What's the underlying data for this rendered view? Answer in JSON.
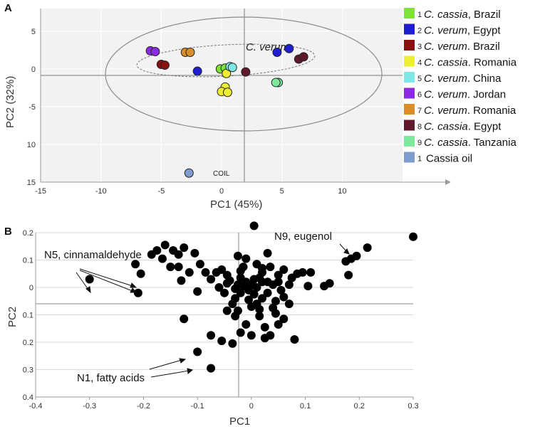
{
  "colors": {
    "plot_bg": "#f2f2f2",
    "grid": "#ffffff",
    "axis": "#7a7a7a",
    "ellipse": "#8c8c8c",
    "point_b": "#000000",
    "c1": "#7fe23a",
    "c2": "#1f1fd0",
    "c3": "#8a1010",
    "c4": "#eeee33",
    "c5": "#7ee7e7",
    "c6": "#8a2be2",
    "c7": "#d98e2a",
    "c8": "#5e1a2a",
    "c9": "#7ee89a",
    "c10": "#7f9ccf"
  },
  "chart_data": [
    {
      "panel": "A",
      "type": "scatter",
      "xlabel": "PC1 (45%)",
      "ylabel": "PC2 (32%)",
      "xlim": [
        -15,
        15
      ],
      "ylim": [
        -15,
        8
      ],
      "xticks": [
        -15,
        -10,
        -5,
        0,
        5,
        10
      ],
      "yticks": [
        5,
        0,
        -5,
        -10,
        -15
      ],
      "ytick_labels": [
        "5",
        "0",
        "-5",
        "10",
        "15"
      ],
      "annotation": "C. verum",
      "coil_label": "COIL",
      "legend": [
        {
          "num": "1",
          "genus": "C. cassia",
          "place": ", Brazil",
          "color": "#7fe23a"
        },
        {
          "num": "2",
          "genus": "C. verum",
          "place": ", Egypt",
          "color": "#1f1fd0"
        },
        {
          "num": "3",
          "genus": "C. verum",
          "place": ". Brazil",
          "color": "#8a1010"
        },
        {
          "num": "4",
          "genus": "C. cassia",
          "place": ". Romania",
          "color": "#eeee33"
        },
        {
          "num": "5",
          "genus": "C. verum",
          "place": ". China",
          "color": "#7ee7e7"
        },
        {
          "num": "6",
          "genus": "C. verum",
          "place": ". Jordan",
          "color": "#8a2be2"
        },
        {
          "num": "7",
          "genus": "C. verum",
          "place": ". Romania",
          "color": "#d98e2a"
        },
        {
          "num": "8",
          "genus": "C. cassia",
          "place": ". Egypt",
          "color": "#5e1a2a"
        },
        {
          "num": "9",
          "genus": "C. cassia",
          "place": ". Tanzania",
          "color": "#7ee89a"
        },
        {
          "num": "1",
          "genus": "",
          "place": "Cassia oil",
          "color": "#7f9ccf"
        }
      ],
      "series": [
        {
          "name": "C. cassia, Brazil",
          "color": "#7fe23a",
          "points": [
            [
              -0.1,
              0.0
            ],
            [
              0.3,
              0.1
            ]
          ]
        },
        {
          "name": "C. verum, Egypt",
          "color": "#1f1fd0",
          "points": [
            [
              -2.0,
              -0.3
            ],
            [
              4.6,
              2.2
            ],
            [
              5.6,
              2.7
            ]
          ]
        },
        {
          "name": "C. verum. Brazil",
          "color": "#8a1010",
          "points": [
            [
              -5.0,
              0.6
            ],
            [
              -4.7,
              0.5
            ]
          ]
        },
        {
          "name": "C. cassia. Romania",
          "color": "#eeee33",
          "points": [
            [
              0.3,
              -2.4
            ],
            [
              0.0,
              -3.0
            ],
            [
              0.5,
              -3.1
            ],
            [
              0.4,
              -0.6
            ]
          ]
        },
        {
          "name": "C. verum. China",
          "color": "#7ee7e7",
          "points": [
            [
              0.7,
              0.3
            ],
            [
              0.9,
              0.2
            ]
          ]
        },
        {
          "name": "C. verum. Jordan",
          "color": "#8a2be2",
          "points": [
            [
              -5.9,
              2.4
            ],
            [
              -5.5,
              2.3
            ]
          ]
        },
        {
          "name": "C. verum. Romania",
          "color": "#d98e2a",
          "points": [
            [
              -3.0,
              2.2
            ],
            [
              -2.6,
              2.2
            ]
          ]
        },
        {
          "name": "C. cassia. Egypt",
          "color": "#5e1a2a",
          "points": [
            [
              2.0,
              -0.4
            ],
            [
              6.4,
              1.3
            ],
            [
              6.8,
              1.6
            ]
          ]
        },
        {
          "name": "C. cassia. Tanzania",
          "color": "#7ee89a",
          "points": [
            [
              4.7,
              -1.8
            ],
            [
              4.5,
              -1.8
            ]
          ]
        },
        {
          "name": "Cassia oil",
          "color": "#7f9ccf",
          "points": [
            [
              -2.7,
              -13.8
            ]
          ]
        }
      ]
    },
    {
      "panel": "B",
      "type": "scatter",
      "xlabel": "PC1",
      "ylabel": "PC2",
      "xlim": [
        -0.4,
        0.3
      ],
      "ylim": [
        -0.4,
        0.2
      ],
      "xticks": [
        -0.4,
        -0.3,
        -0.2,
        -0.1,
        0,
        0.1,
        0.2,
        0.3
      ],
      "xtick_labels": [
        "-0.4",
        "-0.3",
        "-0.2",
        "-0.1",
        "0",
        "0.1",
        "0.2",
        "0.3"
      ],
      "yticks": [
        0.2,
        0.1,
        0,
        -0.1,
        -0.2,
        -0.3,
        -0.4
      ],
      "ytick_labels": [
        "0.2",
        "0.1",
        "0",
        "0.1",
        "0.2",
        "0.3",
        "0.4"
      ],
      "annotations": [
        {
          "text": "N5, cinnamaldehyde"
        },
        {
          "text": "N9, eugenol"
        },
        {
          "text": "N1, fatty acids"
        }
      ],
      "points": [
        [
          0.005,
          0.225
        ],
        [
          -0.3,
          0.03
        ],
        [
          -0.215,
          0.085
        ],
        [
          -0.21,
          -0.02
        ],
        [
          -0.205,
          0.05
        ],
        [
          -0.185,
          0.12
        ],
        [
          -0.175,
          0.135
        ],
        [
          -0.165,
          0.105
        ],
        [
          -0.16,
          0.155
        ],
        [
          -0.145,
          0.135
        ],
        [
          -0.135,
          0.12
        ],
        [
          -0.125,
          0.145
        ],
        [
          -0.105,
          0.125
        ],
        [
          -0.095,
          0.085
        ],
        [
          -0.115,
          0.055
        ],
        [
          -0.13,
          0.025
        ],
        [
          -0.15,
          0.075
        ],
        [
          -0.135,
          0.075
        ],
        [
          -0.085,
          0.055
        ],
        [
          -0.065,
          0.055
        ],
        [
          -0.055,
          0.065
        ],
        [
          -0.045,
          0.045
        ],
        [
          -0.1,
          -0.015
        ],
        [
          -0.125,
          -0.115
        ],
        [
          -0.075,
          -0.175
        ],
        [
          -0.055,
          -0.195
        ],
        [
          -0.035,
          -0.205
        ],
        [
          -0.1,
          -0.235
        ],
        [
          -0.075,
          -0.295
        ],
        [
          -0.04,
          0.025
        ],
        [
          -0.03,
          -0.005
        ],
        [
          -0.02,
          0.035
        ],
        [
          -0.015,
          0.075
        ],
        [
          -0.025,
          0.115
        ],
        [
          -0.01,
          0.105
        ],
        [
          0.01,
          0.085
        ],
        [
          0.02,
          0.055
        ],
        [
          0.03,
          0.125
        ],
        [
          0.035,
          0.075
        ],
        [
          0.05,
          0.045
        ],
        [
          0.06,
          0.065
        ],
        [
          0.075,
          0.035
        ],
        [
          0.085,
          0.05
        ],
        [
          0.095,
          0.055
        ],
        [
          0.11,
          0.055
        ],
        [
          0.105,
          0.005
        ],
        [
          0.135,
          0.005
        ],
        [
          0.145,
          0.015
        ],
        [
          0.18,
          0.045
        ],
        [
          0.185,
          0.105
        ],
        [
          0.175,
          0.095
        ],
        [
          0.195,
          0.115
        ],
        [
          0.215,
          0.145
        ],
        [
          0.3,
          0.185
        ],
        [
          0.08,
          -0.19
        ],
        [
          0.06,
          -0.115
        ],
        [
          0.05,
          -0.135
        ],
        [
          0.035,
          -0.175
        ],
        [
          0.025,
          -0.145
        ],
        [
          0.015,
          -0.105
        ],
        [
          0.0,
          -0.175
        ],
        [
          -0.01,
          -0.135
        ],
        [
          -0.02,
          -0.165
        ],
        [
          -0.03,
          -0.105
        ],
        [
          -0.045,
          -0.085
        ],
        [
          0.025,
          -0.185
        ],
        [
          0.04,
          -0.075
        ],
        [
          0.06,
          -0.035
        ],
        [
          -0.005,
          -0.045
        ],
        [
          0.01,
          -0.06
        ],
        [
          -0.01,
          0.02
        ],
        [
          0.0,
          0.01
        ],
        [
          0.01,
          0.0
        ],
        [
          0.02,
          0.02
        ],
        [
          -0.02,
          -0.02
        ],
        [
          0.03,
          -0.02
        ],
        [
          0.03,
          0.02
        ],
        [
          -0.015,
          0.005
        ],
        [
          0.005,
          -0.025
        ],
        [
          0.015,
          0.035
        ],
        [
          -0.025,
          0.01
        ],
        [
          0.04,
          0.01
        ],
        [
          0.005,
          0.03
        ],
        [
          -0.005,
          -0.01
        ],
        [
          0.02,
          -0.04
        ],
        [
          -0.03,
          -0.04
        ],
        [
          0.045,
          -0.05
        ],
        [
          -0.035,
          -0.06
        ],
        [
          0.0,
          -0.07
        ],
        [
          0.015,
          -0.08
        ],
        [
          -0.045,
          0.015
        ],
        [
          0.05,
          0.02
        ],
        [
          0.055,
          -0.01
        ],
        [
          -0.05,
          -0.02
        ],
        [
          0.07,
          0.01
        ],
        [
          -0.06,
          0.0
        ],
        [
          -0.02,
          0.06
        ],
        [
          0.02,
          0.07
        ],
        [
          0.045,
          -0.095
        ],
        [
          -0.025,
          -0.085
        ],
        [
          0.07,
          -0.06
        ],
        [
          -0.075,
          0.03
        ]
      ]
    }
  ]
}
